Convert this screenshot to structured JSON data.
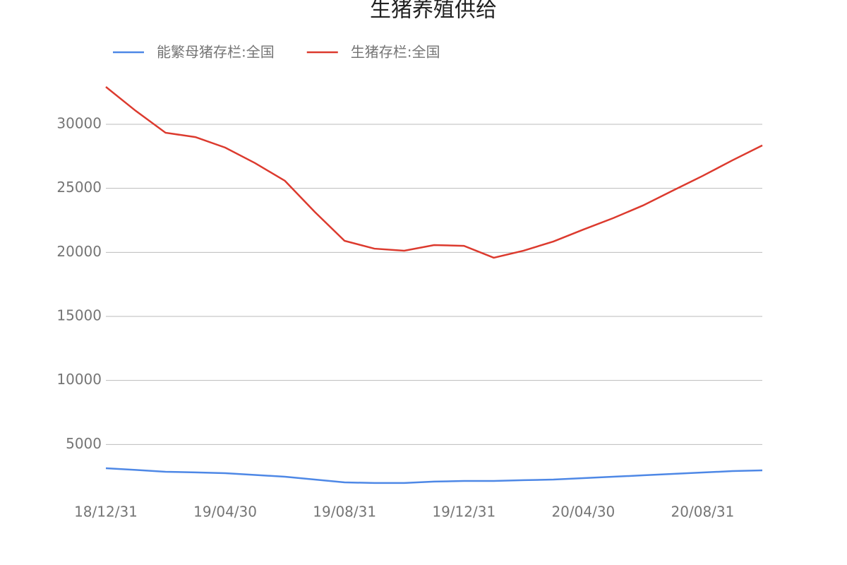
{
  "chart_data": {
    "type": "line",
    "title": "生猪养殖供给",
    "categories": [
      "18/12/31",
      null,
      null,
      null,
      "19/04/30",
      null,
      null,
      null,
      "19/08/31",
      null,
      null,
      null,
      "19/12/31",
      null,
      null,
      null,
      "20/04/30",
      null,
      null,
      null,
      "20/08/31",
      null,
      null
    ],
    "series": [
      {
        "name": "能繁母猪存栏:全国",
        "color": "#4e88e6",
        "values": [
          3140,
          3010,
          2870,
          2820,
          2760,
          2620,
          2480,
          2260,
          2040,
          1990,
          1990,
          2100,
          2150,
          2150,
          2210,
          2260,
          2370,
          2480,
          2590,
          2700,
          2810,
          2920,
          2980
        ]
      },
      {
        "name": "生猪存栏:全国",
        "color": "#dc3a2e",
        "values": [
          32920,
          31050,
          29340,
          29000,
          28180,
          26970,
          25590,
          23160,
          20900,
          20290,
          20130,
          20570,
          20510,
          19580,
          20130,
          20850,
          21780,
          22670,
          23660,
          24820,
          25970,
          27190,
          28350
        ]
      }
    ],
    "ylim": [
      0,
      35000
    ],
    "yticks": [
      5000,
      10000,
      15000,
      20000,
      25000,
      30000
    ],
    "grid": true,
    "legend": "top"
  }
}
